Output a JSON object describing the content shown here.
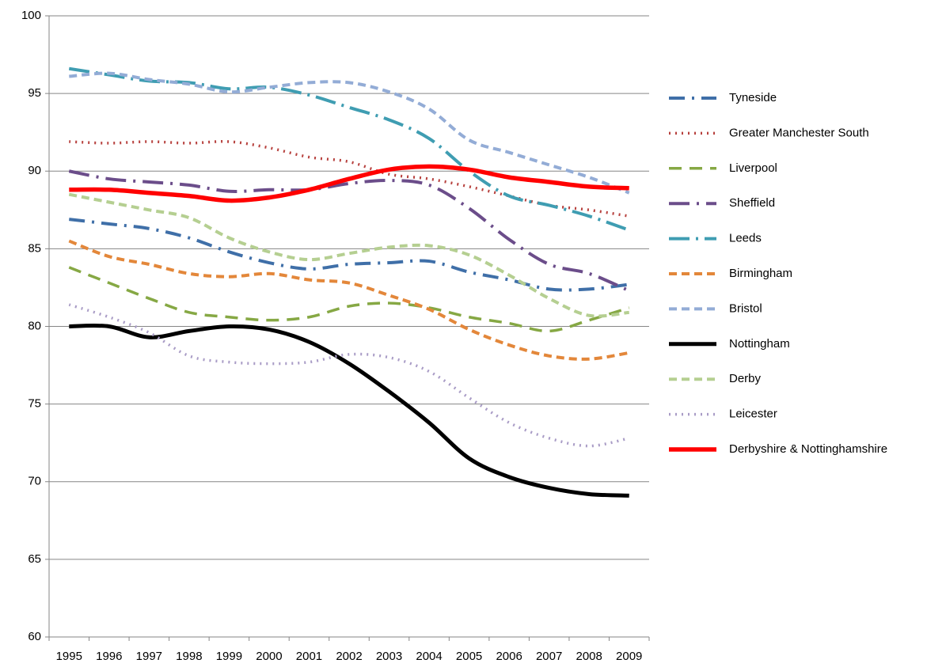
{
  "chart_data": {
    "type": "line",
    "categories": [
      "1995",
      "1996",
      "1997",
      "1998",
      "1999",
      "2000",
      "2001",
      "2002",
      "2003",
      "2004",
      "2005",
      "2006",
      "2007",
      "2008",
      "2009"
    ],
    "ylim": [
      60,
      100
    ],
    "yticks": [
      60,
      65,
      70,
      75,
      80,
      85,
      90,
      95,
      100
    ],
    "grid": true,
    "legend": "right",
    "series": [
      {
        "name": "Tyneside",
        "color": "#3f6fa8",
        "values": [
          86.9,
          86.6,
          86.3,
          85.7,
          84.8,
          84.1,
          83.7,
          84.0,
          84.1,
          84.2,
          83.5,
          83.0,
          82.4,
          82.4,
          82.7
        ]
      },
      {
        "name": "Greater Manchester South",
        "color": "#b7413e",
        "values": [
          91.9,
          91.8,
          91.9,
          91.8,
          91.9,
          91.5,
          90.9,
          90.6,
          89.8,
          89.5,
          89.0,
          88.4,
          87.8,
          87.5,
          87.1
        ]
      },
      {
        "name": "Liverpool",
        "color": "#86a844",
        "values": [
          83.8,
          82.8,
          81.8,
          80.9,
          80.6,
          80.4,
          80.6,
          81.3,
          81.5,
          81.2,
          80.6,
          80.2,
          79.7,
          80.4,
          81.2
        ]
      },
      {
        "name": "Sheffield",
        "color": "#6b4d8a",
        "values": [
          90.0,
          89.5,
          89.3,
          89.1,
          88.7,
          88.8,
          88.8,
          89.2,
          89.4,
          89.1,
          87.6,
          85.6,
          84.0,
          83.4,
          82.3
        ]
      },
      {
        "name": "Leeds",
        "color": "#3f9db2",
        "values": [
          96.6,
          96.2,
          95.8,
          95.7,
          95.3,
          95.4,
          94.9,
          94.1,
          93.3,
          92.1,
          90.0,
          88.4,
          87.8,
          87.1,
          86.2
        ]
      },
      {
        "name": "Birmingham",
        "color": "#e3873a",
        "values": [
          85.5,
          84.5,
          84.0,
          83.4,
          83.2,
          83.4,
          83.0,
          82.8,
          82.0,
          81.1,
          79.8,
          78.8,
          78.1,
          77.9,
          78.3
        ]
      },
      {
        "name": "Bristol",
        "color": "#93acd6",
        "values": [
          96.1,
          96.3,
          95.9,
          95.6,
          95.1,
          95.4,
          95.7,
          95.7,
          95.1,
          94.0,
          92.0,
          91.2,
          90.4,
          89.6,
          88.6
        ]
      },
      {
        "name": "Nottingham",
        "color": "#000000",
        "values": [
          80.0,
          80.0,
          79.3,
          79.7,
          80.0,
          79.8,
          79.0,
          77.6,
          75.8,
          73.8,
          71.5,
          70.3,
          69.6,
          69.2,
          69.1
        ]
      },
      {
        "name": "Derby",
        "color": "#b5cf91",
        "values": [
          88.5,
          88.0,
          87.5,
          87.0,
          85.7,
          84.8,
          84.3,
          84.7,
          85.1,
          85.2,
          84.6,
          83.3,
          81.8,
          80.7,
          80.9
        ]
      },
      {
        "name": "Leicester",
        "color": "#a99cc6",
        "values": [
          81.4,
          80.6,
          79.6,
          78.1,
          77.7,
          77.6,
          77.7,
          78.2,
          78.0,
          77.1,
          75.4,
          73.8,
          72.8,
          72.3,
          72.8
        ]
      },
      {
        "name": "Derbyshire & Nottinghamshire",
        "color": "#ff0000",
        "values": [
          88.8,
          88.8,
          88.6,
          88.4,
          88.1,
          88.3,
          88.8,
          89.5,
          90.1,
          90.3,
          90.1,
          89.6,
          89.3,
          89.0,
          88.9
        ]
      }
    ]
  }
}
